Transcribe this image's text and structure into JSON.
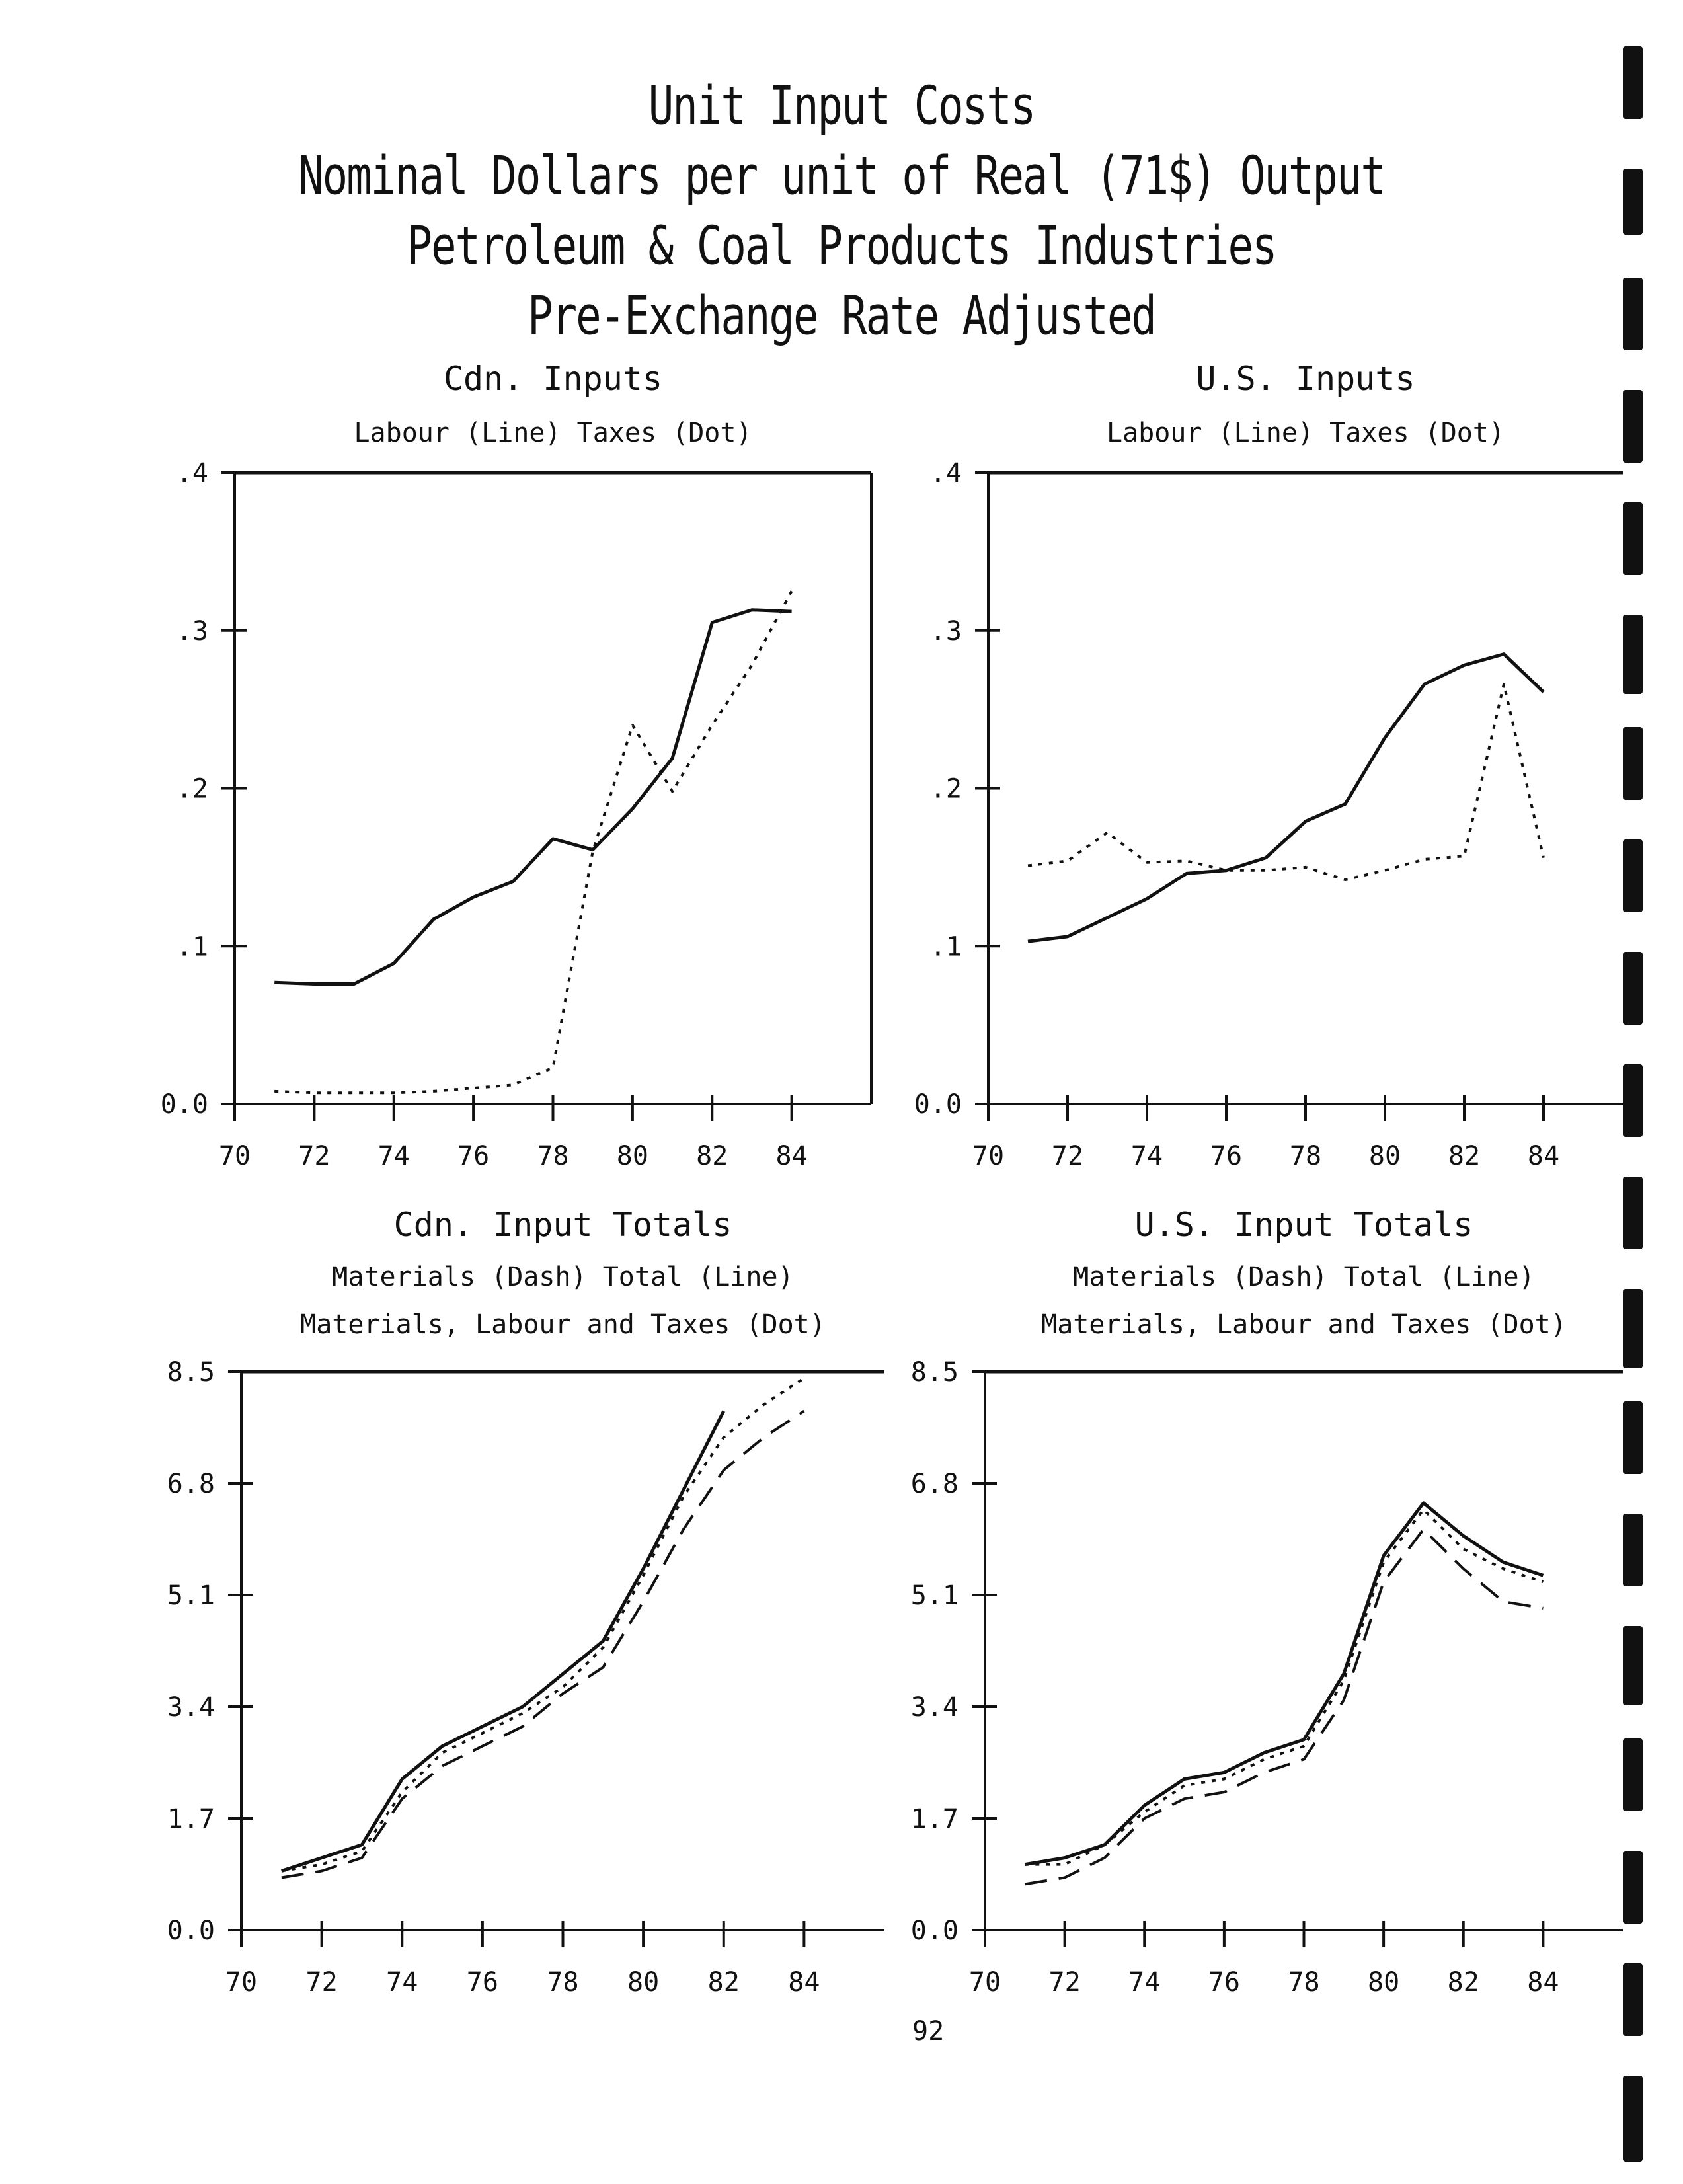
{
  "page": {
    "titles": [
      "Unit Input Costs",
      "Nominal Dollars per unit of Real (71$) Output",
      "Petroleum & Coal Products Industries",
      "Pre-Exchange Rate Adjusted"
    ],
    "page_number": "92"
  },
  "chart_data": [
    {
      "type": "line",
      "title": "Cdn. Inputs",
      "subtitle_lines": [
        "Labour (Line) Taxes (Dot)"
      ],
      "x_tick_labels": [
        "70",
        "72",
        "74",
        "76",
        "78",
        "80",
        "82",
        "84"
      ],
      "y_tick_labels": [
        "0.0",
        ".1",
        ".2",
        ".3",
        ".4"
      ],
      "xlim": [
        70,
        86
      ],
      "ylim": [
        0.0,
        0.4
      ],
      "x": [
        71,
        72,
        73,
        74,
        75,
        76,
        77,
        78,
        79,
        80,
        81,
        82,
        83,
        84
      ],
      "series": [
        {
          "name": "Labour",
          "style": "solid",
          "values": [
            0.077,
            0.076,
            0.076,
            0.089,
            0.117,
            0.131,
            0.141,
            0.168,
            0.161,
            0.187,
            0.219,
            0.305,
            0.313,
            0.312
          ]
        },
        {
          "name": "Taxes",
          "style": "dot",
          "values": [
            0.008,
            0.007,
            0.007,
            0.007,
            0.008,
            0.01,
            0.012,
            0.023,
            0.16,
            0.24,
            0.198,
            0.24,
            0.278,
            0.325
          ]
        }
      ]
    },
    {
      "type": "line",
      "title": "U.S. Inputs",
      "subtitle_lines": [
        "Labour (Line) Taxes (Dot)"
      ],
      "x_tick_labels": [
        "70",
        "72",
        "74",
        "76",
        "78",
        "80",
        "82",
        "84"
      ],
      "y_tick_labels": [
        "0.0",
        ".1",
        ".2",
        ".3",
        ".4"
      ],
      "xlim": [
        70,
        86
      ],
      "ylim": [
        0.0,
        0.4
      ],
      "x": [
        71,
        72,
        73,
        74,
        75,
        76,
        77,
        78,
        79,
        80,
        81,
        82,
        83,
        84
      ],
      "series": [
        {
          "name": "Labour",
          "style": "solid",
          "values": [
            0.103,
            0.106,
            0.118,
            0.13,
            0.146,
            0.148,
            0.156,
            0.179,
            0.19,
            0.232,
            0.266,
            0.278,
            0.285,
            0.261
          ]
        },
        {
          "name": "Taxes",
          "style": "dot",
          "values": [
            0.151,
            0.154,
            0.172,
            0.153,
            0.154,
            0.148,
            0.148,
            0.15,
            0.142,
            0.148,
            0.155,
            0.157,
            0.266,
            0.156
          ]
        }
      ]
    },
    {
      "type": "line",
      "title": "Cdn. Input Totals",
      "subtitle_lines": [
        "Materials (Dash) Total (Line)",
        "Materials, Labour and Taxes (Dot)"
      ],
      "x_tick_labels": [
        "70",
        "72",
        "74",
        "76",
        "78",
        "80",
        "82",
        "84"
      ],
      "y_tick_labels": [
        "0.0",
        "1.7",
        "3.4",
        "5.1",
        "6.8",
        "8.5"
      ],
      "xlim": [
        70,
        86
      ],
      "ylim": [
        0.0,
        8.5
      ],
      "x": [
        71,
        72,
        73,
        74,
        75,
        76,
        77,
        78,
        79,
        80,
        81,
        82,
        83,
        84
      ],
      "series": [
        {
          "name": "Materials",
          "style": "dash",
          "values": [
            0.8,
            0.9,
            1.1,
            2.0,
            2.5,
            2.8,
            3.1,
            3.6,
            4.0,
            5.0,
            6.1,
            7.0,
            7.5,
            7.9
          ]
        },
        {
          "name": "Total",
          "style": "solid",
          "values": [
            0.9,
            1.1,
            1.3,
            2.3,
            2.8,
            3.1,
            3.4,
            3.9,
            4.4,
            5.5,
            6.7,
            7.9,
            null,
            null
          ]
        },
        {
          "name": "Materials, Labour and Taxes",
          "style": "dot",
          "values": [
            0.9,
            1.0,
            1.2,
            2.1,
            2.7,
            3.0,
            3.3,
            3.7,
            4.3,
            5.4,
            6.6,
            7.5,
            8.0,
            8.4
          ]
        }
      ]
    },
    {
      "type": "line",
      "title": "U.S. Input Totals",
      "subtitle_lines": [
        "Materials (Dash) Total (Line)",
        "Materials, Labour and Taxes (Dot)"
      ],
      "x_tick_labels": [
        "70",
        "72",
        "74",
        "76",
        "78",
        "80",
        "82",
        "84"
      ],
      "y_tick_labels": [
        "0.0",
        "1.7",
        "3.4",
        "5.1",
        "6.8",
        "8.5"
      ],
      "xlim": [
        70,
        86
      ],
      "ylim": [
        0.0,
        8.5
      ],
      "x": [
        71,
        72,
        73,
        74,
        75,
        76,
        77,
        78,
        79,
        80,
        81,
        82,
        83,
        84
      ],
      "series": [
        {
          "name": "Materials",
          "style": "dash",
          "values": [
            0.7,
            0.8,
            1.1,
            1.7,
            2.0,
            2.1,
            2.4,
            2.6,
            3.5,
            5.3,
            6.1,
            5.5,
            5.0,
            4.9
          ]
        },
        {
          "name": "Total",
          "style": "solid",
          "values": [
            1.0,
            1.1,
            1.3,
            1.9,
            2.3,
            2.4,
            2.7,
            2.9,
            3.9,
            5.7,
            6.5,
            6.0,
            5.6,
            5.4
          ]
        },
        {
          "name": "Materials, Labour and Taxes",
          "style": "dot",
          "values": [
            1.0,
            1.0,
            1.3,
            1.8,
            2.2,
            2.3,
            2.6,
            2.8,
            3.8,
            5.6,
            6.4,
            5.8,
            5.5,
            5.3
          ]
        }
      ]
    }
  ]
}
